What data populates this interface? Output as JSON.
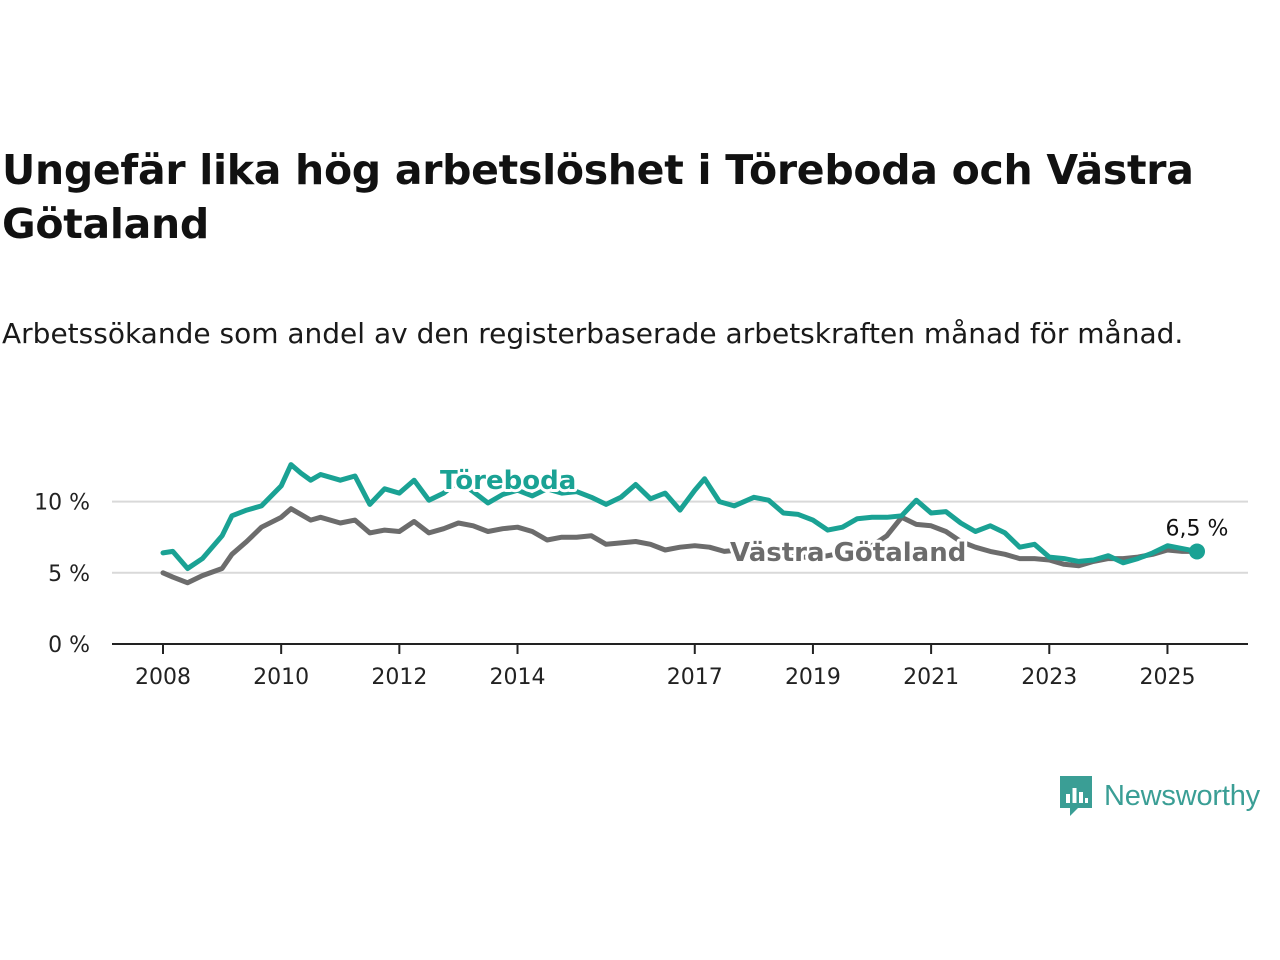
{
  "title": "Ungefär lika hög arbetslöshet i Töreboda och Västra Götaland",
  "subtitle": "Arbetssökande som andel av den registerbaserade arbetskraften månad för månad.",
  "brand": {
    "name": "Newsworthy",
    "color": "#3a9e95",
    "icon": "newsworthy-chart-icon"
  },
  "chart_data": {
    "type": "line",
    "x_start": "2008-01",
    "x_end": "2025-07",
    "x_ticks": [
      "2008",
      "2010",
      "2012",
      "2014",
      "2017",
      "2019",
      "2021",
      "2023",
      "2025"
    ],
    "y_ticks": [
      "0 %",
      "5 %",
      "10 %"
    ],
    "ylim": [
      0,
      12.5
    ],
    "grid": true,
    "end_label": "6,5 %",
    "series": [
      {
        "name": "Töreboda",
        "color": "#1aa294",
        "keypoints": [
          [
            "2008-01",
            6.4
          ],
          [
            "2008-03",
            6.5
          ],
          [
            "2008-06",
            5.3
          ],
          [
            "2008-09",
            6.0
          ],
          [
            "2009-01",
            7.6
          ],
          [
            "2009-03",
            9.0
          ],
          [
            "2009-06",
            9.4
          ],
          [
            "2009-09",
            9.7
          ],
          [
            "2010-01",
            11.1
          ],
          [
            "2010-03",
            12.6
          ],
          [
            "2010-05",
            12.0
          ],
          [
            "2010-07",
            11.5
          ],
          [
            "2010-09",
            11.9
          ],
          [
            "2011-01",
            11.5
          ],
          [
            "2011-04",
            11.8
          ],
          [
            "2011-07",
            9.8
          ],
          [
            "2011-10",
            10.9
          ],
          [
            "2012-01",
            10.6
          ],
          [
            "2012-04",
            11.5
          ],
          [
            "2012-07",
            10.1
          ],
          [
            "2012-10",
            10.6
          ],
          [
            "2013-01",
            11.4
          ],
          [
            "2013-04",
            10.7
          ],
          [
            "2013-07",
            9.9
          ],
          [
            "2013-10",
            10.5
          ],
          [
            "2014-01",
            10.8
          ],
          [
            "2014-04",
            10.4
          ],
          [
            "2014-07",
            10.9
          ],
          [
            "2014-10",
            10.6
          ],
          [
            "2015-01",
            10.7
          ],
          [
            "2015-04",
            10.3
          ],
          [
            "2015-07",
            9.8
          ],
          [
            "2015-10",
            10.3
          ],
          [
            "2016-01",
            11.2
          ],
          [
            "2016-04",
            10.2
          ],
          [
            "2016-07",
            10.6
          ],
          [
            "2016-10",
            9.4
          ],
          [
            "2017-01",
            10.8
          ],
          [
            "2017-03",
            11.6
          ],
          [
            "2017-06",
            10.0
          ],
          [
            "2017-09",
            9.7
          ],
          [
            "2018-01",
            10.3
          ],
          [
            "2018-04",
            10.1
          ],
          [
            "2018-07",
            9.2
          ],
          [
            "2018-10",
            9.1
          ],
          [
            "2019-01",
            8.7
          ],
          [
            "2019-04",
            8.0
          ],
          [
            "2019-07",
            8.2
          ],
          [
            "2019-10",
            8.8
          ],
          [
            "2020-01",
            8.9
          ],
          [
            "2020-04",
            8.9
          ],
          [
            "2020-07",
            9.0
          ],
          [
            "2020-10",
            10.1
          ],
          [
            "2021-01",
            9.2
          ],
          [
            "2021-04",
            9.3
          ],
          [
            "2021-07",
            8.5
          ],
          [
            "2021-10",
            7.9
          ],
          [
            "2022-01",
            8.3
          ],
          [
            "2022-04",
            7.8
          ],
          [
            "2022-07",
            6.8
          ],
          [
            "2022-10",
            7.0
          ],
          [
            "2023-01",
            6.1
          ],
          [
            "2023-04",
            6.0
          ],
          [
            "2023-07",
            5.8
          ],
          [
            "2023-10",
            5.9
          ],
          [
            "2024-01",
            6.2
          ],
          [
            "2024-04",
            5.7
          ],
          [
            "2024-07",
            6.0
          ],
          [
            "2024-10",
            6.4
          ],
          [
            "2025-01",
            6.9
          ],
          [
            "2025-04",
            6.7
          ],
          [
            "2025-07",
            6.5
          ]
        ]
      },
      {
        "name": "Västra Götaland",
        "color": "#6c6c6c",
        "keypoints": [
          [
            "2008-01",
            5.0
          ],
          [
            "2008-03",
            4.7
          ],
          [
            "2008-06",
            4.3
          ],
          [
            "2008-09",
            4.8
          ],
          [
            "2009-01",
            5.3
          ],
          [
            "2009-03",
            6.3
          ],
          [
            "2009-06",
            7.2
          ],
          [
            "2009-09",
            8.2
          ],
          [
            "2010-01",
            8.9
          ],
          [
            "2010-03",
            9.5
          ],
          [
            "2010-05",
            9.1
          ],
          [
            "2010-07",
            8.7
          ],
          [
            "2010-09",
            8.9
          ],
          [
            "2011-01",
            8.5
          ],
          [
            "2011-04",
            8.7
          ],
          [
            "2011-07",
            7.8
          ],
          [
            "2011-10",
            8.0
          ],
          [
            "2012-01",
            7.9
          ],
          [
            "2012-04",
            8.6
          ],
          [
            "2012-07",
            7.8
          ],
          [
            "2012-10",
            8.1
          ],
          [
            "2013-01",
            8.5
          ],
          [
            "2013-04",
            8.3
          ],
          [
            "2013-07",
            7.9
          ],
          [
            "2013-10",
            8.1
          ],
          [
            "2014-01",
            8.2
          ],
          [
            "2014-04",
            7.9
          ],
          [
            "2014-07",
            7.3
          ],
          [
            "2014-10",
            7.5
          ],
          [
            "2015-01",
            7.5
          ],
          [
            "2015-04",
            7.6
          ],
          [
            "2015-07",
            7.0
          ],
          [
            "2015-10",
            7.1
          ],
          [
            "2016-01",
            7.2
          ],
          [
            "2016-04",
            7.0
          ],
          [
            "2016-07",
            6.6
          ],
          [
            "2016-10",
            6.8
          ],
          [
            "2017-01",
            6.9
          ],
          [
            "2017-04",
            6.8
          ],
          [
            "2017-07",
            6.5
          ],
          [
            "2017-10",
            6.6
          ],
          [
            "2018-01",
            6.5
          ],
          [
            "2018-04",
            6.3
          ],
          [
            "2018-07",
            6.2
          ],
          [
            "2018-10",
            6.1
          ],
          [
            "2019-01",
            6.1
          ],
          [
            "2019-04",
            6.2
          ],
          [
            "2019-07",
            6.4
          ],
          [
            "2019-10",
            6.6
          ],
          [
            "2020-01",
            6.9
          ],
          [
            "2020-04",
            7.6
          ],
          [
            "2020-07",
            8.9
          ],
          [
            "2020-10",
            8.4
          ],
          [
            "2021-01",
            8.3
          ],
          [
            "2021-04",
            7.9
          ],
          [
            "2021-07",
            7.2
          ],
          [
            "2021-10",
            6.8
          ],
          [
            "2022-01",
            6.5
          ],
          [
            "2022-04",
            6.3
          ],
          [
            "2022-07",
            6.0
          ],
          [
            "2022-10",
            6.0
          ],
          [
            "2023-01",
            5.9
          ],
          [
            "2023-04",
            5.6
          ],
          [
            "2023-07",
            5.5
          ],
          [
            "2023-10",
            5.8
          ],
          [
            "2024-01",
            6.0
          ],
          [
            "2024-04",
            6.0
          ],
          [
            "2024-07",
            6.1
          ],
          [
            "2024-10",
            6.3
          ],
          [
            "2025-01",
            6.6
          ],
          [
            "2025-04",
            6.5
          ],
          [
            "2025-07",
            6.5
          ]
        ]
      }
    ]
  }
}
